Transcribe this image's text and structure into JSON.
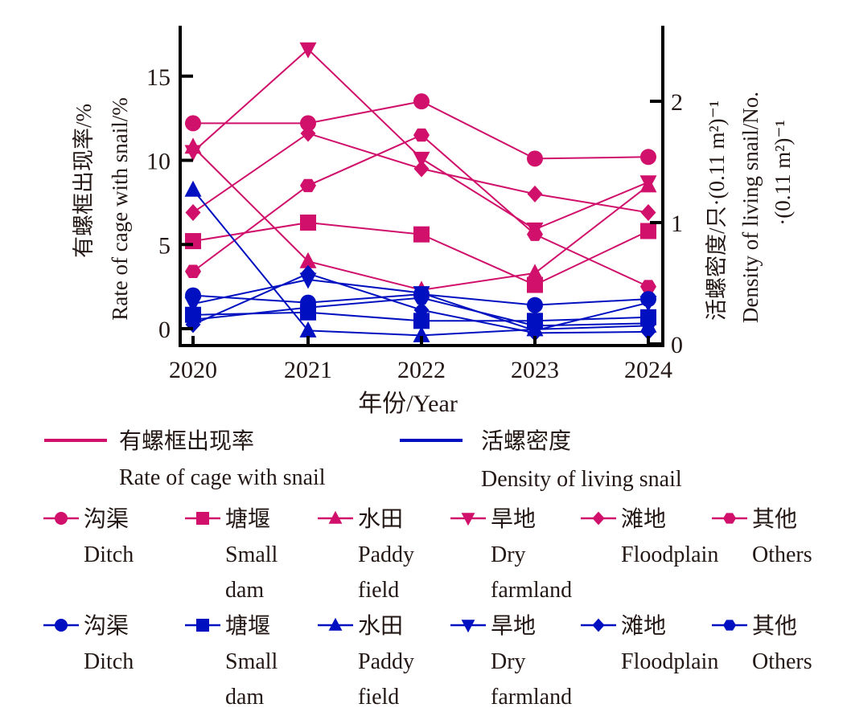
{
  "chart_data": {
    "type": "line",
    "title": "",
    "x": [
      "2020",
      "2021",
      "2022",
      "2023",
      "2024"
    ],
    "xlabel": "年份/Year",
    "ylabel_left": [
      "有螺框出现率/%",
      "Rate of cage with snail/%"
    ],
    "ylabel_right": [
      "活螺密度/只·(0.11 m²)⁻¹",
      "Density of living snail/No.",
      "·(0.11 m²)⁻¹"
    ],
    "ylim_left": [
      -1,
      18
    ],
    "yticks_left": [
      0,
      5,
      10,
      15
    ],
    "ylim_right": [
      0,
      2.6
    ],
    "yticks_right": [
      0,
      1,
      2
    ],
    "grid": false,
    "legend_position": "bottom",
    "colors": {
      "rate": "#d0106a",
      "density": "#0010c0"
    },
    "series_groups": [
      {
        "metric": "rate",
        "legend_cn": "有螺框出现率",
        "legend_en": "Rate of cage with snail",
        "axis": "left",
        "series": [
          {
            "name_cn": "沟渠",
            "name_en": "Ditch",
            "marker": "circle",
            "values": [
              12.2,
              12.2,
              13.5,
              10.1,
              10.2
            ]
          },
          {
            "name_cn": "塘堰",
            "name_en": "Small dam",
            "marker": "square",
            "values": [
              5.2,
              6.3,
              5.6,
              2.6,
              5.8
            ]
          },
          {
            "name_cn": "水田",
            "name_en": "Paddy field",
            "marker": "triangle-up",
            "values": [
              10.8,
              4.0,
              2.3,
              3.3,
              8.5
            ]
          },
          {
            "name_cn": "旱地",
            "name_en": "Dry farmland",
            "marker": "triangle-down",
            "values": [
              10.5,
              16.6,
              10.1,
              5.9,
              8.7
            ]
          },
          {
            "name_cn": "滩地",
            "name_en": "Floodplain",
            "marker": "diamond",
            "values": [
              6.9,
              11.6,
              9.5,
              8.0,
              6.9
            ]
          },
          {
            "name_cn": "其他",
            "name_en": "Others",
            "marker": "hexagon",
            "values": [
              3.4,
              8.5,
              11.5,
              5.6,
              2.5
            ]
          }
        ]
      },
      {
        "metric": "density",
        "legend_cn": "活螺密度",
        "legend_en": "Density of living snail",
        "axis": "right",
        "series": [
          {
            "name_cn": "沟渠",
            "name_en": "Ditch",
            "marker": "circle",
            "values": [
              0.4,
              0.34,
              0.41,
              0.32,
              0.37
            ]
          },
          {
            "name_cn": "塘堰",
            "name_en": "Small dam",
            "marker": "square",
            "values": [
              0.24,
              0.26,
              0.19,
              0.19,
              0.22
            ]
          },
          {
            "name_cn": "水田",
            "name_en": "Paddy field",
            "marker": "triangle-up",
            "values": [
              1.27,
              0.11,
              0.07,
              0.12,
              0.15
            ]
          },
          {
            "name_cn": "旱地",
            "name_en": "Dry farmland",
            "marker": "triangle-down",
            "values": [
              0.33,
              0.53,
              0.42,
              0.11,
              0.34
            ]
          },
          {
            "name_cn": "滩地",
            "name_en": "Floodplain",
            "marker": "diamond",
            "values": [
              0.16,
              0.58,
              0.28,
              0.09,
              0.1
            ]
          },
          {
            "name_cn": "其他",
            "name_en": "Others",
            "marker": "hexagon",
            "values": [
              0.2,
              0.3,
              0.38,
              0.15,
              0.17
            ]
          }
        ]
      }
    ]
  }
}
